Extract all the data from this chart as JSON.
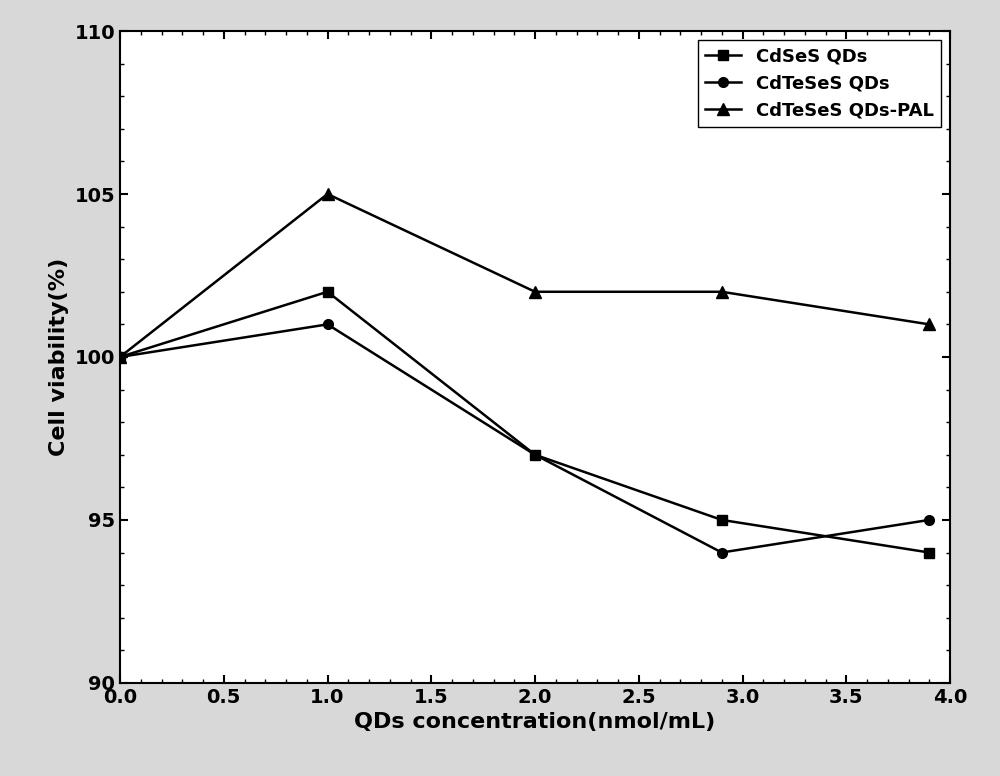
{
  "x": [
    0.0,
    1.0,
    2.0,
    2.9,
    3.9
  ],
  "series": [
    {
      "label": "CdSeS QDs",
      "y": [
        100,
        102,
        97,
        95,
        94
      ],
      "marker": "s",
      "color": "#000000",
      "linewidth": 1.8,
      "markersize": 7
    },
    {
      "label": "CdTeSeS QDs",
      "y": [
        100,
        101,
        97,
        94,
        95
      ],
      "marker": "o",
      "color": "#000000",
      "linewidth": 1.8,
      "markersize": 7
    },
    {
      "label": "CdTeSeS QDs-PAL",
      "y": [
        100,
        105,
        102,
        102,
        101
      ],
      "marker": "^",
      "color": "#000000",
      "linewidth": 1.8,
      "markersize": 8
    }
  ],
  "xlabel": "QDs concentration(nmol/mL)",
  "ylabel": "Cell viability(%)",
  "xlim": [
    0.0,
    4.0
  ],
  "ylim": [
    90,
    110
  ],
  "xticks": [
    0.0,
    0.5,
    1.0,
    1.5,
    2.0,
    2.5,
    3.0,
    3.5,
    4.0
  ],
  "yticks": [
    90,
    95,
    100,
    105,
    110
  ],
  "label_fontsize": 16,
  "tick_fontsize": 14,
  "legend_fontsize": 13,
  "legend_loc": "upper right",
  "background_color": "#d8d8d8",
  "plot_background": "#ffffff"
}
